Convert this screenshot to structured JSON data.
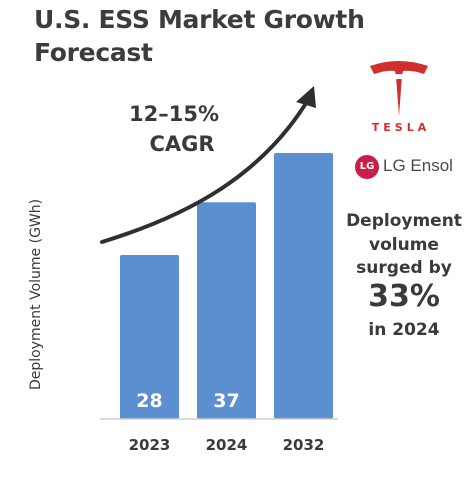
{
  "title": "U.S. ESS Market Growth Forecast",
  "chart_data": {
    "type": "bar",
    "categories": [
      "2023",
      "2024",
      "2032"
    ],
    "values": [
      28,
      37,
      null
    ],
    "value_labels": [
      "28",
      "37",
      ""
    ],
    "ylabel": "Deployment Volume (GWh)",
    "bar_color": "#5b8fd0",
    "annotation": {
      "line1": "12–15%",
      "line2": "CAGR"
    }
  },
  "logos": {
    "tesla": "TESLA",
    "lg_mark": "LG",
    "lg_name": "LG Ensol"
  },
  "stat": {
    "line1": "Deployment",
    "line2": "volume",
    "line3": "surged by",
    "value": "33%",
    "line4": "in 2024"
  },
  "colors": {
    "tesla_red": "#d0302b",
    "lg_red": "#c81e4a",
    "text": "#3a3a3a"
  }
}
